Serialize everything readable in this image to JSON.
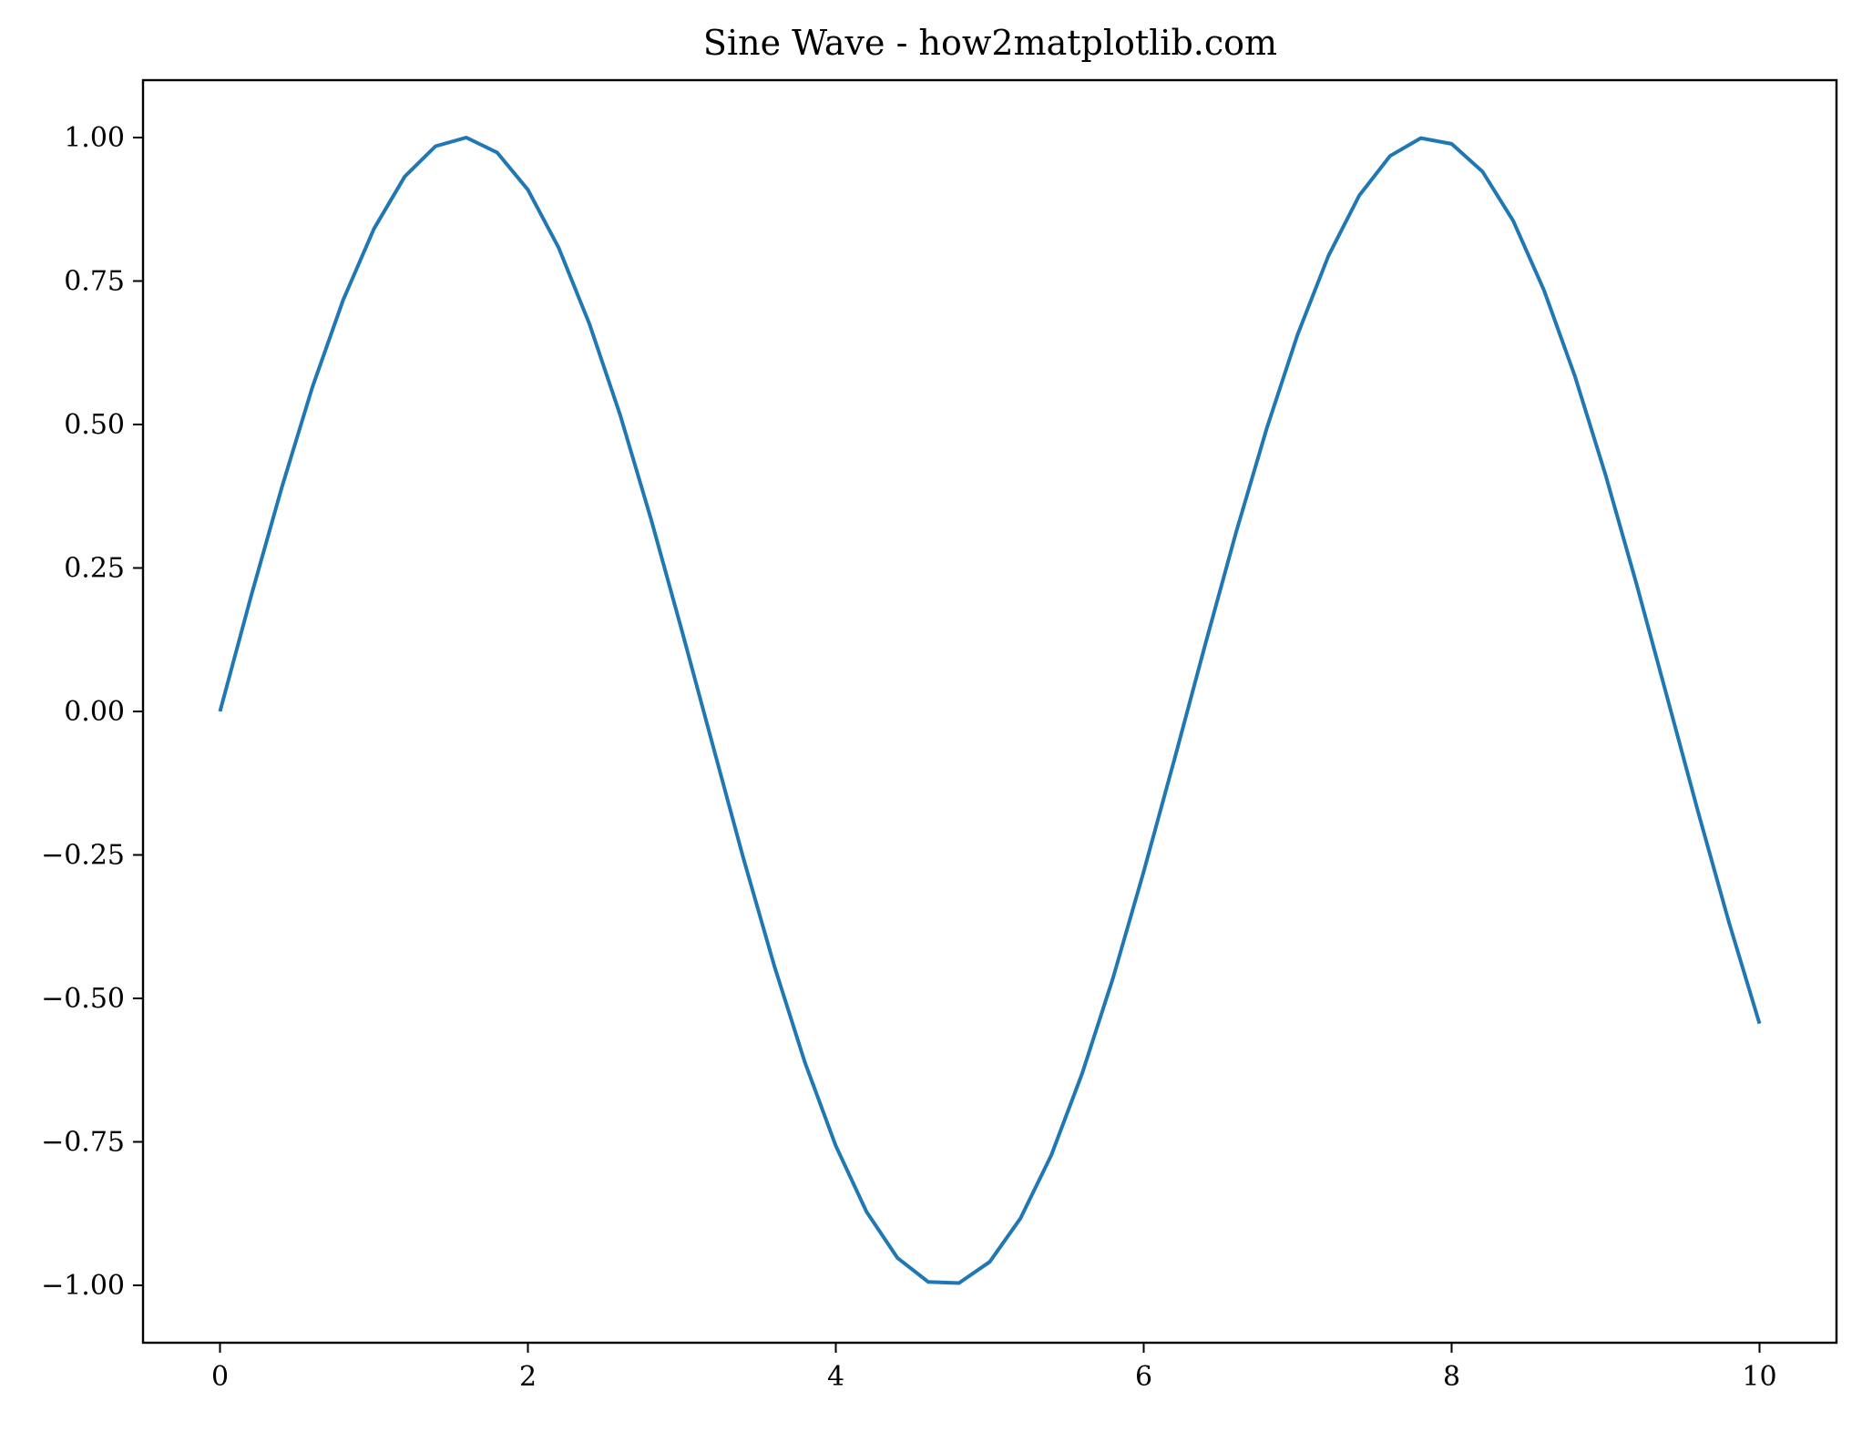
{
  "chart_data": {
    "type": "line",
    "title": "Sine Wave - how2matplotlib.com",
    "xlabel": "",
    "ylabel": "",
    "xlim": [
      -0.5,
      10.5
    ],
    "ylim": [
      -1.1,
      1.1
    ],
    "x_ticks": [
      0,
      2,
      4,
      6,
      8,
      10
    ],
    "x_tick_labels": [
      "0",
      "2",
      "4",
      "6",
      "8",
      "10"
    ],
    "y_ticks": [
      1.0,
      0.75,
      0.5,
      0.25,
      0.0,
      -0.25,
      -0.5,
      -0.75,
      -1.0
    ],
    "y_tick_labels": [
      "1.00",
      "0.75",
      "0.50",
      "0.25",
      "0.00",
      "−0.25",
      "−0.50",
      "−0.75",
      "−1.00"
    ],
    "grid": false,
    "series": [
      {
        "color": "#1f77b4",
        "x": [
          0,
          0.2,
          0.4,
          0.6,
          0.8,
          1.0,
          1.2,
          1.4,
          1.6,
          1.8,
          2.0,
          2.2,
          2.4,
          2.6,
          2.8,
          3.0,
          3.2,
          3.4,
          3.6,
          3.8,
          4.0,
          4.2,
          4.4,
          4.6,
          4.8,
          5.0,
          5.2,
          5.4,
          5.6,
          5.8,
          6.0,
          6.2,
          6.4,
          6.6,
          6.8,
          7.0,
          7.2,
          7.4,
          7.6,
          7.8,
          8.0,
          8.2,
          8.4,
          8.6,
          8.8,
          9.0,
          9.2,
          9.4,
          9.6,
          9.8,
          10.0
        ],
        "y": [
          0.0,
          0.199,
          0.389,
          0.565,
          0.717,
          0.841,
          0.932,
          0.985,
          1.0,
          0.974,
          0.909,
          0.808,
          0.675,
          0.516,
          0.335,
          0.141,
          -0.058,
          -0.256,
          -0.443,
          -0.612,
          -0.757,
          -0.872,
          -0.952,
          -0.994,
          -0.996,
          -0.959,
          -0.883,
          -0.773,
          -0.631,
          -0.465,
          -0.279,
          -0.083,
          0.117,
          0.312,
          0.494,
          0.657,
          0.794,
          0.899,
          0.968,
          0.999,
          0.989,
          0.941,
          0.855,
          0.734,
          0.585,
          0.412,
          0.223,
          0.025,
          -0.174,
          -0.366,
          -0.544
        ]
      }
    ]
  }
}
